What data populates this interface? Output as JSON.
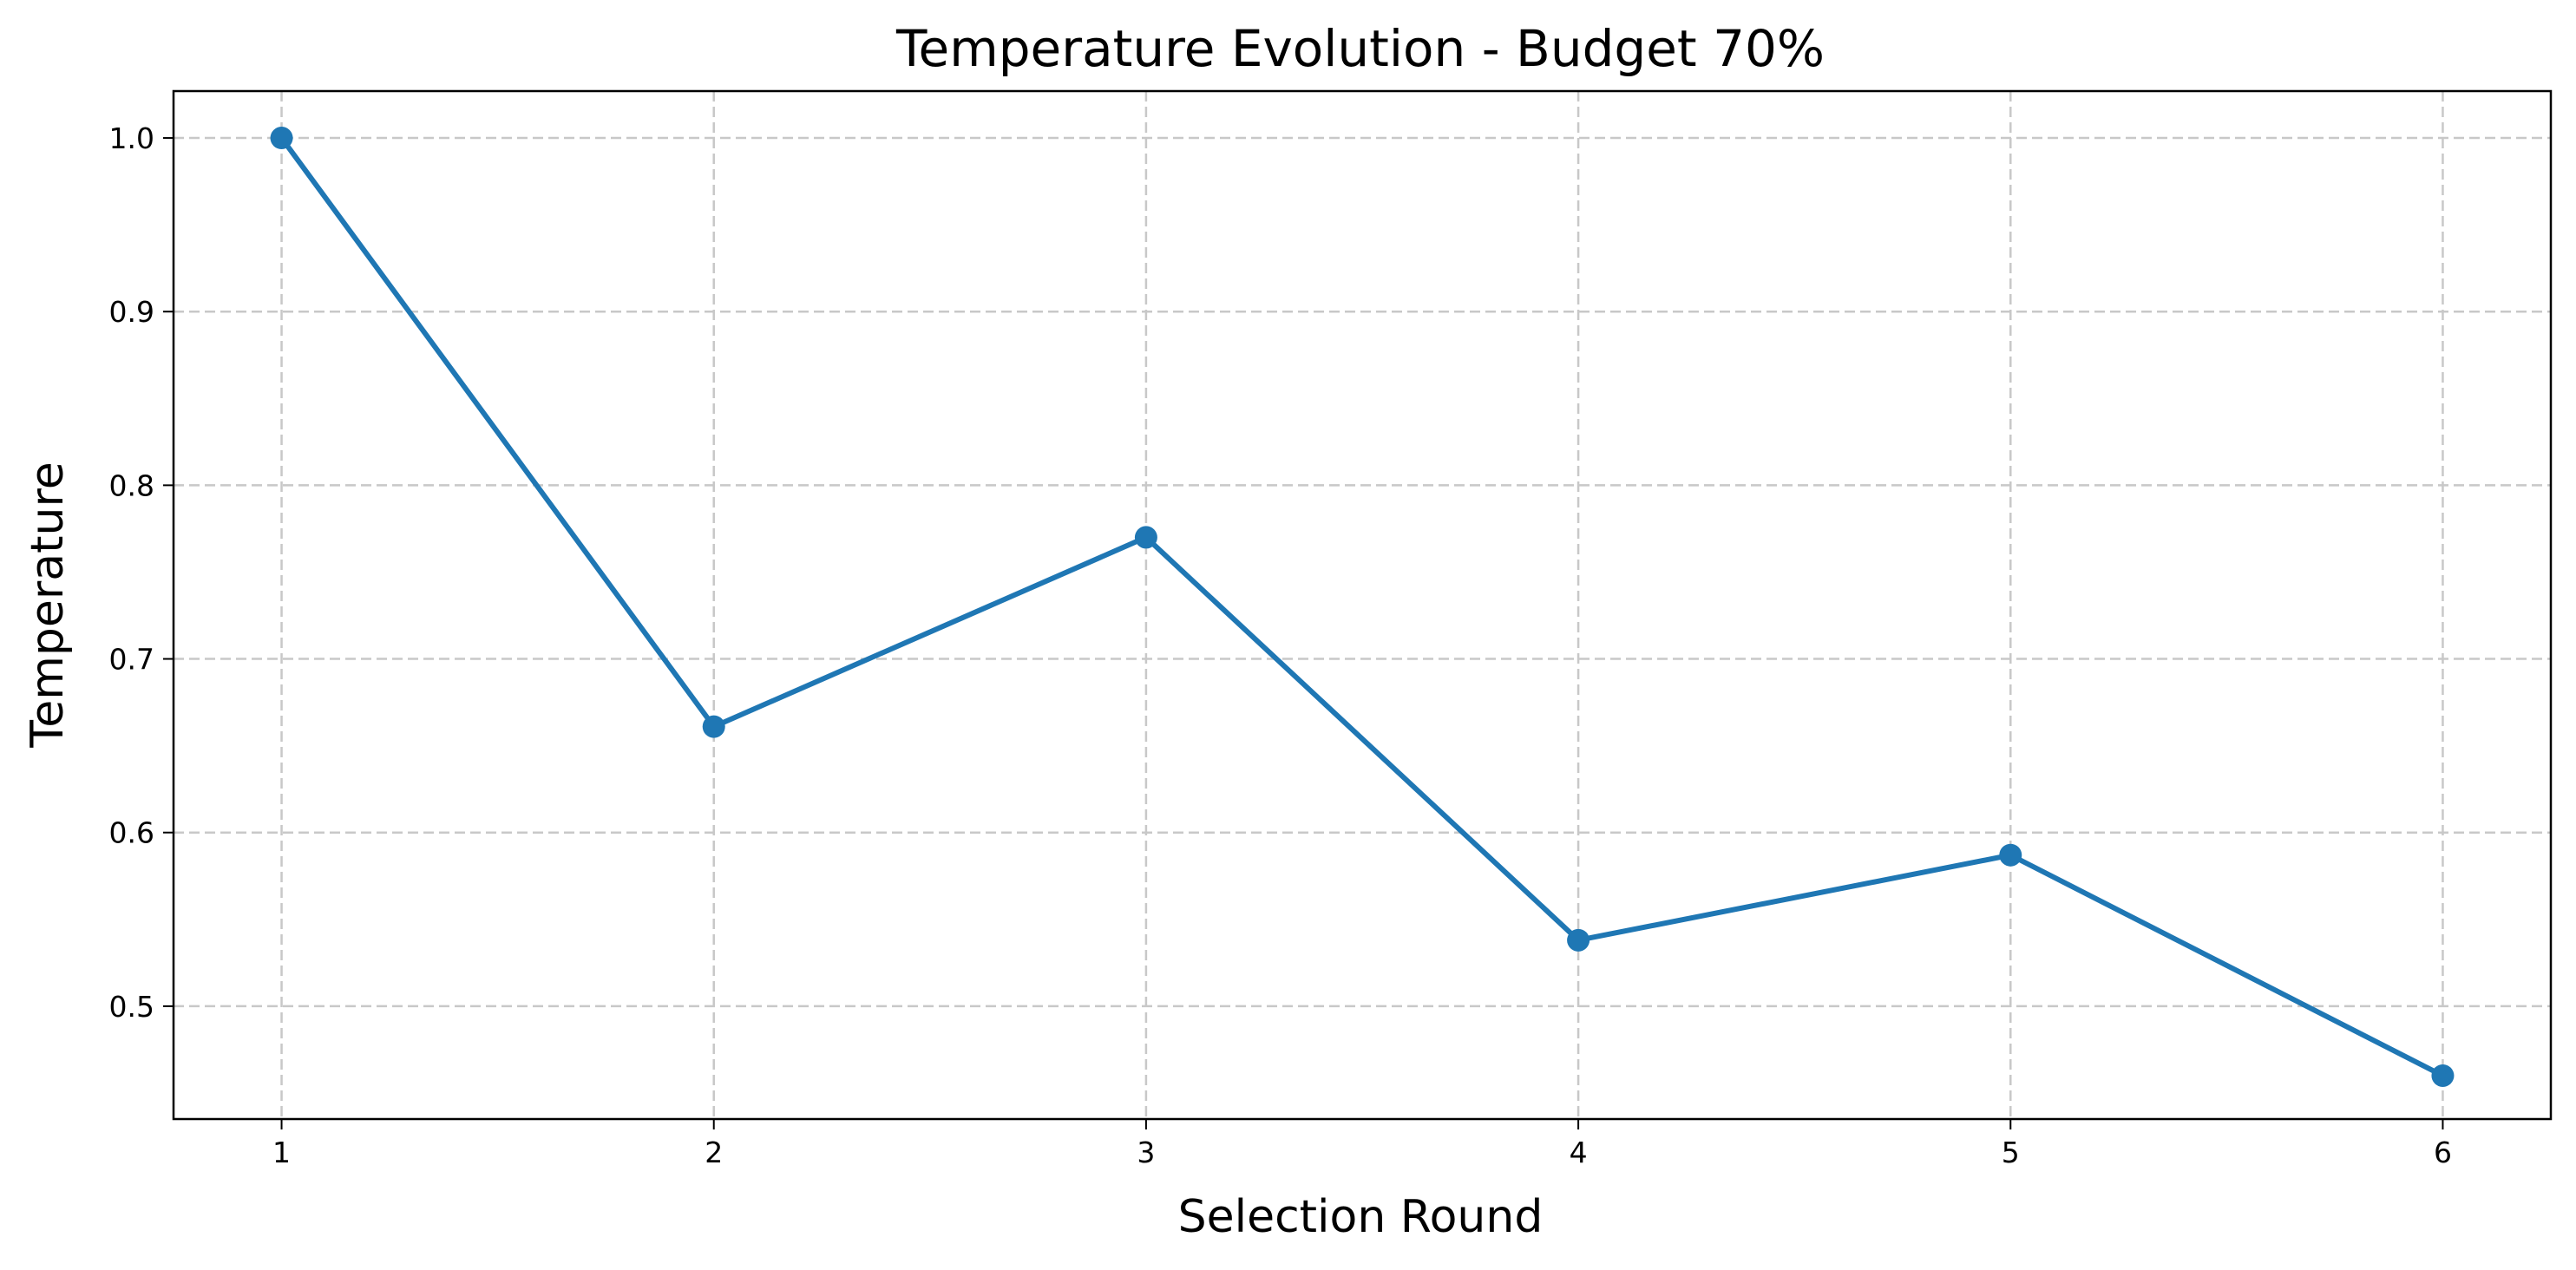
{
  "chart_data": {
    "type": "line",
    "title": "Temperature Evolution - Budget 70%",
    "xlabel": "Selection Round",
    "ylabel": "Temperature",
    "x": [
      1,
      2,
      3,
      4,
      5,
      6
    ],
    "xlim": [
      0.75,
      6.25
    ],
    "ylim": [
      0.435,
      1.027
    ],
    "xticks": [
      1,
      2,
      3,
      4,
      5,
      6
    ],
    "yticks": [
      0.5,
      0.6,
      0.7,
      0.8,
      0.9,
      1.0
    ],
    "xtick_labels": [
      "1",
      "2",
      "3",
      "4",
      "5",
      "6"
    ],
    "ytick_labels": [
      "0.5",
      "0.6",
      "0.7",
      "0.8",
      "0.9",
      "1.0"
    ],
    "grid": true,
    "series": [
      {
        "values": [
          1.0,
          0.661,
          0.77,
          0.538,
          0.587,
          0.46
        ],
        "color": "#1f77b4"
      }
    ]
  }
}
